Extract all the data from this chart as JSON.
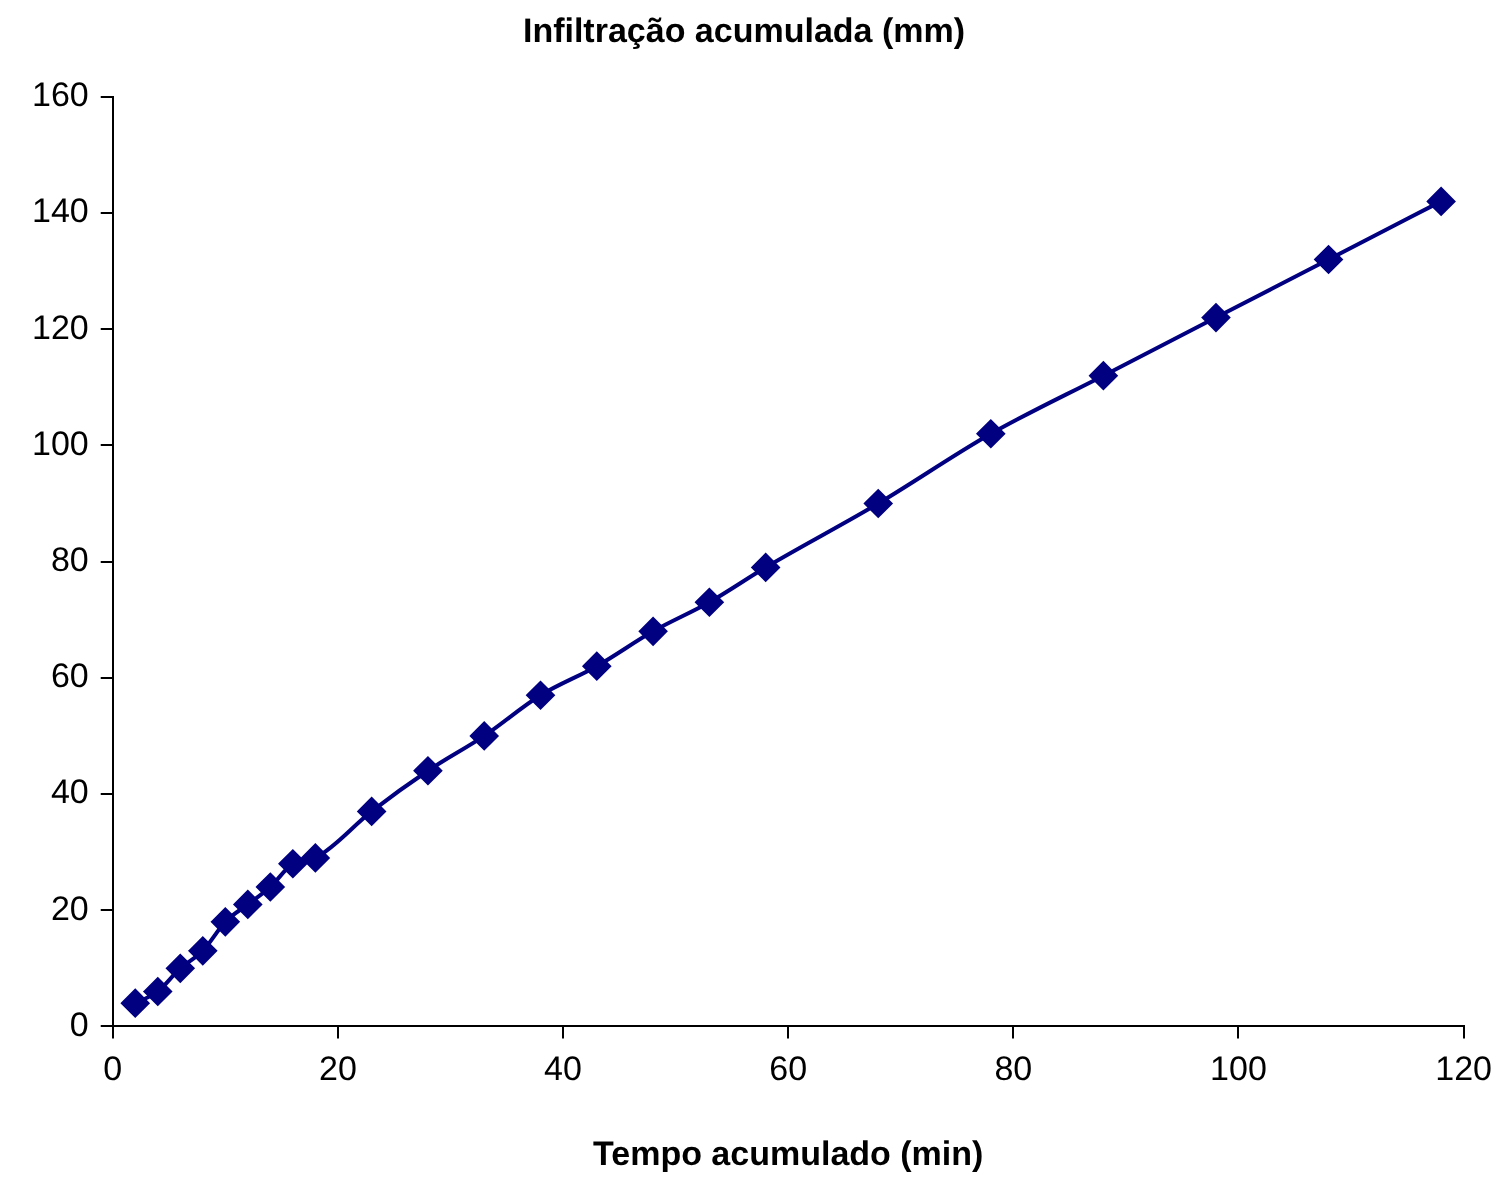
{
  "chart_data": {
    "type": "line",
    "title": "Infiltração acumulada (mm)",
    "xlabel": "Tempo acumulado (min)",
    "x": [
      2,
      4,
      6,
      8,
      10,
      12,
      14,
      16,
      18,
      23,
      28,
      33,
      38,
      43,
      48,
      53,
      58,
      68,
      78,
      88,
      98,
      108,
      118
    ],
    "series": [
      {
        "color": "#000080",
        "values": [
          4,
          6,
          10,
          13,
          18,
          21,
          24,
          28,
          29,
          37,
          44,
          50,
          57,
          62,
          68,
          73,
          79,
          90,
          102,
          112,
          122,
          132,
          142
        ]
      }
    ],
    "xlim": [
      0,
      120
    ],
    "xticks": [
      0,
      20,
      40,
      60,
      80,
      100,
      120
    ],
    "ylim": [
      0,
      160
    ],
    "yticks": [
      0,
      20,
      40,
      60,
      80,
      100,
      120,
      140,
      160
    ],
    "grid": false,
    "legend": false,
    "marker": "diamond",
    "line_style": "solid"
  }
}
